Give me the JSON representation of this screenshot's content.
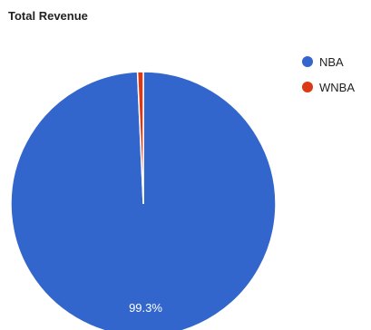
{
  "chart_data": {
    "type": "pie",
    "title": "Total Revenue",
    "slices": [
      {
        "label": "NBA",
        "value": 99.3,
        "color": "#3366cc",
        "data_label": "99.3%"
      },
      {
        "label": "WNBA",
        "value": 0.7,
        "color": "#dc3912",
        "data_label": ""
      }
    ],
    "legend_position": "top-right"
  }
}
